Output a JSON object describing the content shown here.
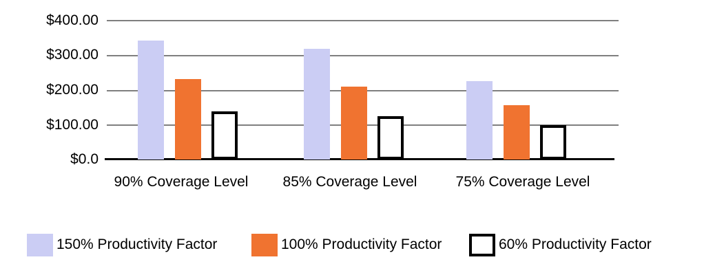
{
  "chart_data": {
    "type": "bar",
    "title": "",
    "categories": [
      "90% Coverage Level",
      "85% Coverage Level",
      "75% Coverage Level"
    ],
    "series": [
      {
        "name": "150% Productivity Factor",
        "fill": "#CBCDF4",
        "border": "none",
        "values": [
          340,
          318,
          225
        ]
      },
      {
        "name": "100% Productivity Factor",
        "fill": "#F07330",
        "border": "none",
        "values": [
          230,
          209,
          156
        ]
      },
      {
        "name": "60% Productivity Factor",
        "fill": "#FFFFFF",
        "border": "4px solid #000000",
        "values": [
          138,
          125,
          98
        ]
      }
    ],
    "xlabel": "",
    "ylabel": "",
    "ylim": [
      0,
      400
    ],
    "ytick_labels": [
      "$400.00",
      "$300.00",
      "$200.00",
      "$100.00",
      "$0.0"
    ],
    "grid": "horizontal",
    "legend_position": "bottom",
    "colors": {
      "gridline": "#7f7f7f",
      "axis": "#000000",
      "background": "#ffffff",
      "text": "#000000"
    }
  }
}
